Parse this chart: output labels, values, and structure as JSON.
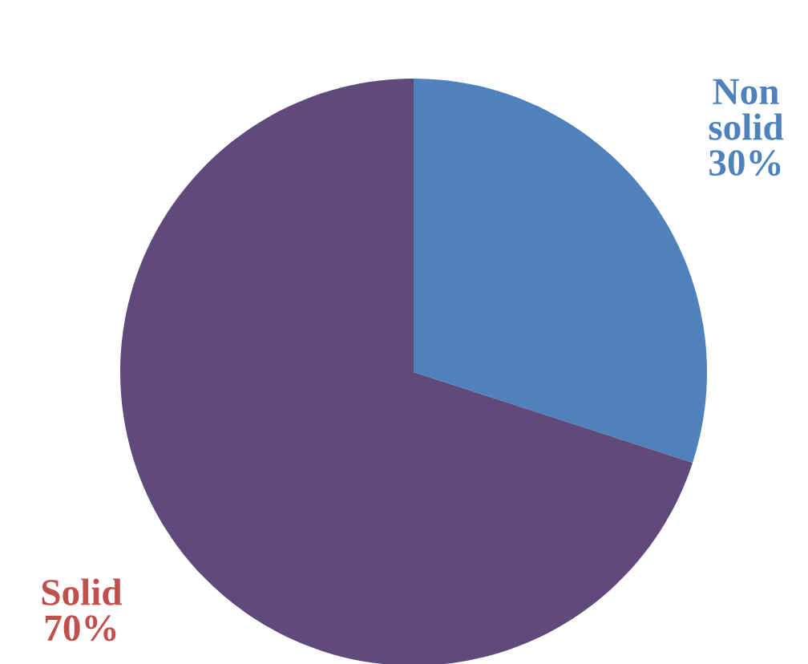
{
  "chart_data": {
    "type": "pie",
    "categories": [
      "Non solid",
      "Solid"
    ],
    "values": [
      30,
      70
    ],
    "colors": [
      "#4f81bd",
      "#604a7b"
    ],
    "value_labels": [
      "30%",
      "70%"
    ]
  }
}
